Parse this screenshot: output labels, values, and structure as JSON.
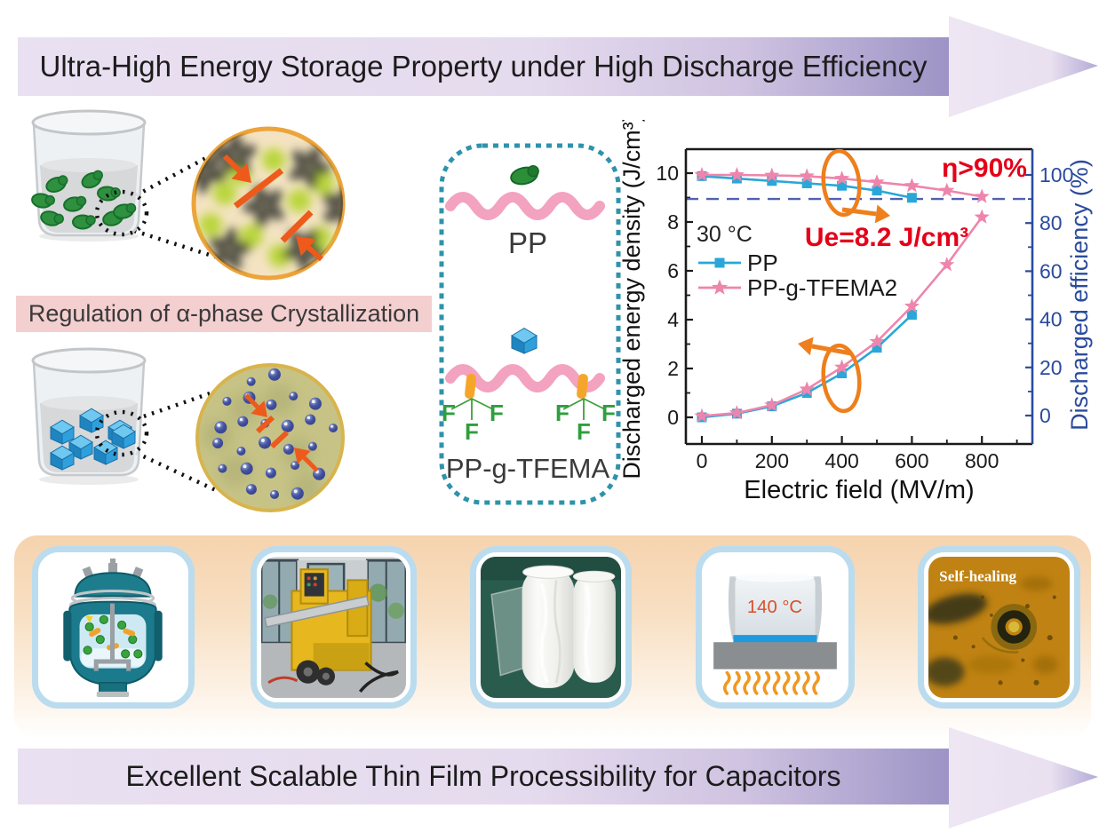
{
  "top_banner": {
    "label": "Ultra-High Energy Storage Property under High Discharge Efficiency"
  },
  "left_panel": {
    "regulation_label": "Regulation of α-phase Crystallization"
  },
  "molecule_box": {
    "pp_label": "PP",
    "ppg_label": "PP-g-TFEMA",
    "f_label": "F"
  },
  "chart": {
    "y_left_label": "Discharged energy density (J/cm³)",
    "y_right_label": "Discharged efficiency (%)",
    "x_label": "Electric field (MV/m)",
    "temp_annotation": "30 °C",
    "eta_annotation": "η>90%",
    "ue_annotation": "Ue=8.2 J/cm³",
    "legend": [
      "PP",
      "PP-g-TFEMA2"
    ]
  },
  "chart_data": {
    "type": "line",
    "title": "",
    "xlabel": "Electric field (MV/m)",
    "ylabel_left": "Discharged energy density (J/cm³)",
    "ylabel_right": "Discharged efficiency (%)",
    "x_ticks": [
      0,
      200,
      400,
      600,
      800
    ],
    "x_minor_step": 100,
    "y_left_ticks": [
      0,
      2,
      4,
      6,
      8,
      10
    ],
    "y_right_ticks": [
      0,
      20,
      40,
      60,
      80,
      100
    ],
    "x_axis_range": [
      -45,
      945
    ],
    "y_left_range": [
      -1,
      11
    ],
    "y_right_range": [
      -10,
      110
    ],
    "grid": false,
    "legend_position": "upper-left-inside",
    "dashed_line_right_axis_value": 90,
    "annotations": [
      "30 °C",
      "η>90%",
      "Ue=8.2 J/cm³"
    ],
    "series": [
      {
        "name": "PP energy density",
        "axis": "left",
        "marker": "square",
        "color": "#2aa7d8",
        "x": [
          0,
          100,
          200,
          300,
          400,
          500,
          600
        ],
        "y": [
          0,
          0.15,
          0.45,
          1.0,
          1.8,
          2.85,
          4.2
        ]
      },
      {
        "name": "PP-g-TFEMA2 energy density",
        "axis": "left",
        "marker": "star",
        "color": "#ee85ac",
        "x": [
          0,
          100,
          200,
          300,
          400,
          500,
          600,
          700,
          800
        ],
        "y": [
          0.05,
          0.18,
          0.5,
          1.15,
          2.05,
          3.1,
          4.55,
          6.25,
          8.2
        ]
      },
      {
        "name": "PP efficiency",
        "axis": "right",
        "marker": "square",
        "color": "#2aa7d8",
        "x": [
          0,
          100,
          200,
          300,
          400,
          500,
          600
        ],
        "y": [
          99.5,
          98.5,
          97.5,
          96.5,
          95.5,
          93.5,
          90.5
        ]
      },
      {
        "name": "PP-g-TFEMA2 efficiency",
        "axis": "right",
        "marker": "star",
        "color": "#ee85ac",
        "x": [
          0,
          100,
          200,
          300,
          400,
          500,
          600,
          700,
          800
        ],
        "y": [
          100,
          100,
          99.8,
          99.5,
          98.5,
          97,
          95.5,
          93.5,
          91
        ]
      }
    ]
  },
  "process_row": {
    "temp_label": "140 °C",
    "self_healing_label": "Self-healing"
  },
  "bottom_banner": {
    "label": "Excellent Scalable Thin Film Processibility for Capacitors"
  },
  "colors": {
    "pp_series": "#2aa7d8",
    "ppg_series": "#ee85ac",
    "efficiency_axis": "#2b4b9d",
    "annotation_red": "#e50019",
    "annotation_orange": "#ee7f1c",
    "banner_purple": "#cfc3e1",
    "regulation_banner_pink": "#f4cfd0",
    "molecule_box_teal": "#2e93ab",
    "chain_pink": "#f3a2c0"
  }
}
